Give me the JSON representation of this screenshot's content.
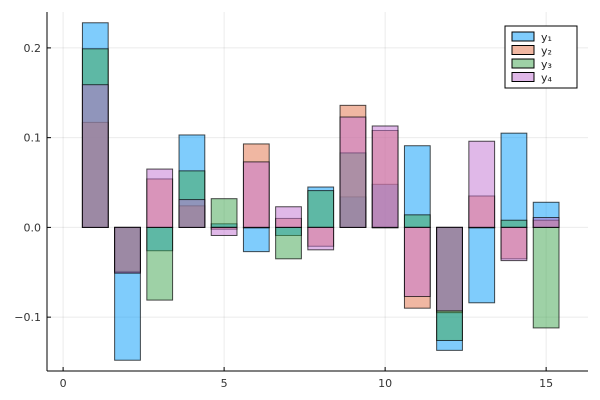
{
  "chart_data": {
    "type": "bar",
    "overlay": true,
    "x": [
      1,
      2,
      3,
      4,
      5,
      6,
      7,
      8,
      9,
      10,
      11,
      12,
      13,
      14,
      15
    ],
    "xlim": [
      -0.5,
      16.3
    ],
    "ylim": [
      -0.16,
      0.24
    ],
    "x_ticks": [
      0,
      5,
      10,
      15
    ],
    "x_tick_labels": [
      "0",
      "5",
      "10",
      "15"
    ],
    "y_ticks": [
      -0.1,
      0.0,
      0.1,
      0.2
    ],
    "y_tick_labels": [
      "−0.1",
      "0.0",
      "0.1",
      "0.2"
    ],
    "grid": true,
    "legend_position": "top-right",
    "bar_width": 0.8,
    "series": [
      {
        "name": "y₁",
        "color": "#009af9",
        "values": [
          0.228,
          -0.148,
          -0.026,
          0.103,
          0.004,
          -0.027,
          -0.009,
          0.045,
          0.034,
          0.048,
          0.091,
          -0.137,
          -0.084,
          0.105,
          0.028
        ]
      },
      {
        "name": "y₂",
        "color": "#e26f46",
        "values": [
          0.117,
          -0.049,
          0.054,
          0.024,
          -0.002,
          0.093,
          0.01,
          -0.021,
          0.136,
          0.108,
          -0.09,
          -0.095,
          0.035,
          -0.035,
          0.008
        ]
      },
      {
        "name": "y₃",
        "color": "#3da44d",
        "values": [
          0.199,
          -0.05,
          -0.081,
          0.063,
          0.032,
          0.0,
          -0.035,
          0.041,
          0.083,
          0.0,
          0.014,
          -0.126,
          0.0,
          0.008,
          -0.112
        ]
      },
      {
        "name": "y₄",
        "color": "#c271d2",
        "values": [
          0.159,
          -0.051,
          0.065,
          0.031,
          -0.009,
          0.073,
          0.023,
          -0.025,
          0.123,
          0.113,
          -0.077,
          -0.093,
          0.096,
          -0.037,
          0.011
        ]
      }
    ]
  }
}
